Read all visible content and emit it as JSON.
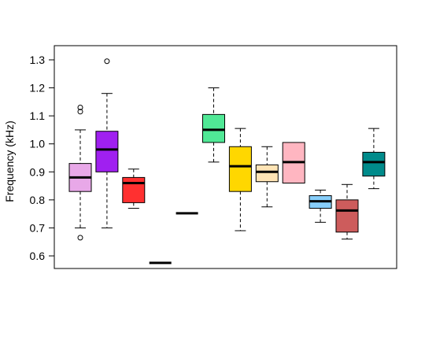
{
  "chart_data": {
    "type": "boxplot",
    "ylabel": "Frequency (kHz)",
    "ylim": [
      0.54,
      1.35
    ],
    "yticks": [
      0.6,
      0.7,
      0.8,
      0.9,
      1.0,
      1.1,
      1.2,
      1.3
    ],
    "ytick_labels": [
      "0.6",
      "0.7",
      "0.8",
      "0.9",
      "1.0",
      "1.1",
      "1.2",
      "1.3"
    ],
    "groups": 12,
    "boxes": [
      {
        "min": 0.7,
        "q1": 0.83,
        "median": 0.88,
        "q3": 0.93,
        "max": 1.05,
        "outliers": [
          0.665,
          1.115,
          1.13
        ],
        "color": "#e8a8e8"
      },
      {
        "min": 0.7,
        "q1": 0.9,
        "median": 0.98,
        "q3": 1.045,
        "max": 1.18,
        "outliers": [
          1.295
        ],
        "color": "#a020f0"
      },
      {
        "min": 0.77,
        "q1": 0.79,
        "median": 0.86,
        "q3": 0.88,
        "max": 0.91,
        "outliers": [],
        "color": "#ff3030"
      },
      {
        "min": 0.575,
        "q1": 0.575,
        "median": 0.575,
        "q3": 0.575,
        "max": 0.575,
        "outliers": [],
        "color": "#000000"
      },
      {
        "min": 0.752,
        "q1": 0.752,
        "median": 0.752,
        "q3": 0.752,
        "max": 0.752,
        "outliers": [],
        "color": "#000000"
      },
      {
        "min": 0.935,
        "q1": 1.005,
        "median": 1.05,
        "q3": 1.105,
        "max": 1.2,
        "outliers": [],
        "color": "#50e896"
      },
      {
        "min": 0.69,
        "q1": 0.83,
        "median": 0.92,
        "q3": 0.99,
        "max": 1.055,
        "outliers": [],
        "color": "#ffd700"
      },
      {
        "min": 0.775,
        "q1": 0.865,
        "median": 0.9,
        "q3": 0.925,
        "max": 0.99,
        "outliers": [],
        "color": "#ffe4b5"
      },
      {
        "min": 0.86,
        "q1": 0.86,
        "median": 0.935,
        "q3": 1.005,
        "max": 1.005,
        "outliers": [],
        "color": "#ffb6c1"
      },
      {
        "min": 0.72,
        "q1": 0.77,
        "median": 0.795,
        "q3": 0.815,
        "max": 0.835,
        "outliers": [],
        "color": "#87cefa"
      },
      {
        "min": 0.66,
        "q1": 0.685,
        "median": 0.762,
        "q3": 0.8,
        "max": 0.855,
        "outliers": [],
        "color": "#cd5c5c"
      },
      {
        "min": 0.84,
        "q1": 0.885,
        "median": 0.935,
        "q3": 0.97,
        "max": 1.055,
        "outliers": [],
        "color": "#008b8b"
      }
    ]
  }
}
